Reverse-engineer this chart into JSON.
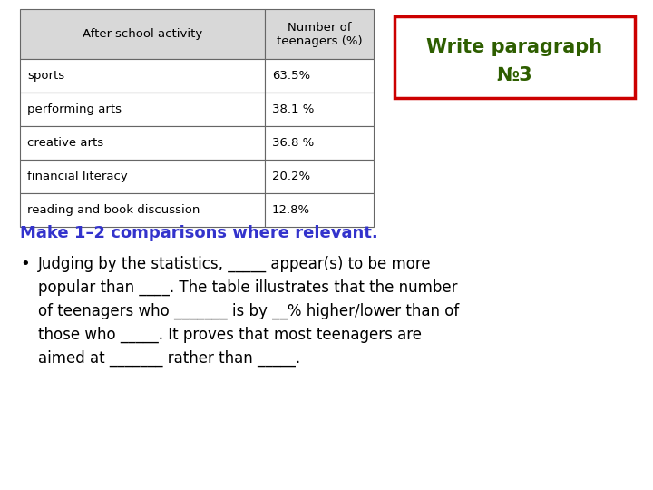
{
  "table_headers": [
    "After-school activity",
    "Number of\nteenagers (%)"
  ],
  "table_rows": [
    [
      "sports",
      "63.5%"
    ],
    [
      "performing arts",
      "38.1 %"
    ],
    [
      "creative arts",
      "36.8 %"
    ],
    [
      "financial literacy",
      "20.2%"
    ],
    [
      "reading and book discussion",
      "12.8%"
    ]
  ],
  "box_text_line1": "Write paragraph",
  "box_text_line2": "№3",
  "box_border_color": "#cc0000",
  "box_text_color": "#2e5e00",
  "heading_text": "Make 1–2 comparisons where relevant.",
  "heading_color": "#3333cc",
  "bullet_lines": [
    "Judging by the statistics, _____ appear(s) to be more",
    "popular than ____. The table illustrates that the number",
    "of teenagers who _______ is by __% higher/lower than of",
    "those who _____. It proves that most teenagers are",
    "aimed at _______ rather than _____."
  ],
  "bullet_color": "#000000",
  "background_color": "#ffffff",
  "table_header_bg": "#d8d8d8",
  "table_border_color": "#666666"
}
